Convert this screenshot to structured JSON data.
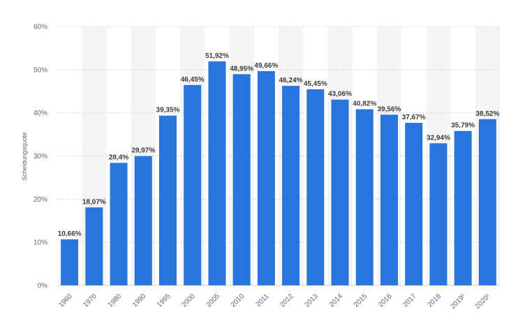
{
  "chart_data": {
    "type": "bar",
    "title": "",
    "xlabel": "",
    "ylabel": "Scheidungsquote",
    "ylim": [
      0,
      60
    ],
    "yticks": [
      0,
      10,
      20,
      30,
      40,
      50,
      60
    ],
    "ytick_labels": [
      "0%",
      "10%",
      "20%",
      "30%",
      "40%",
      "50%",
      "60%"
    ],
    "grid": true,
    "categories": [
      "1960",
      "1970",
      "1980",
      "1990",
      "1995",
      "2000",
      "2005",
      "2010",
      "2011",
      "2012",
      "2013",
      "2014",
      "2015",
      "2016",
      "2017",
      "2018",
      "2019¹",
      "2020¹"
    ],
    "values": [
      10.66,
      18.07,
      28.4,
      29.97,
      39.35,
      46.45,
      51.92,
      48.95,
      49.66,
      46.24,
      45.45,
      43.06,
      40.82,
      39.56,
      37.67,
      32.94,
      35.79,
      38.52
    ],
    "value_labels": [
      "10,66%",
      "18,07%",
      "28,4%",
      "29,97%",
      "39,35%",
      "46,45%",
      "51,92%",
      "48,95%",
      "49,66%",
      "46,24%",
      "45,45%",
      "43,06%",
      "40,82%",
      "39,56%",
      "37,67%",
      "32,94%",
      "35,79%",
      "38,52%"
    ],
    "colors": {
      "bar": "#2876dd",
      "band": "#f5f5f5",
      "grid": "#c9c9c9",
      "tick_text": "#666666",
      "value_text": "#3b3b3b"
    }
  }
}
